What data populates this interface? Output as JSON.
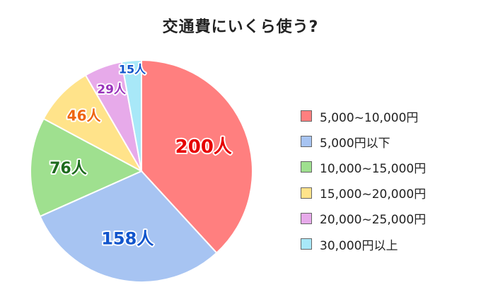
{
  "chart_data": {
    "type": "pie",
    "title": "交通費にいくら使う?",
    "unit": "人",
    "slices": [
      {
        "label": "5,000~10,000円",
        "value": 200,
        "color": "#ff7f7f",
        "text_color": "#e60000"
      },
      {
        "label": "5,000円以下",
        "value": 158,
        "color": "#a7c4f2",
        "text_color": "#1155cc"
      },
      {
        "label": "10,000~15,000円",
        "value": 76,
        "color": "#9fe08f",
        "text_color": "#1e6b1e"
      },
      {
        "label": "15,000~20,000円",
        "value": 46,
        "color": "#ffe38a",
        "text_color": "#ee6611"
      },
      {
        "label": "20,000~25,000円",
        "value": 29,
        "color": "#e7aaea",
        "text_color": "#9933bb"
      },
      {
        "label": "30,000円以上",
        "value": 15,
        "color": "#a8e8f8",
        "text_color": "#1155cc"
      }
    ],
    "start_angle": "12 o'clock",
    "direction": "clockwise",
    "legend_position": "right"
  }
}
